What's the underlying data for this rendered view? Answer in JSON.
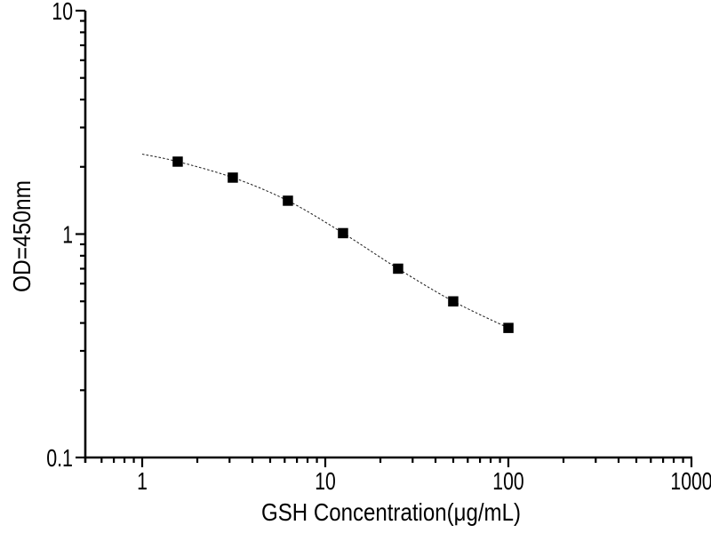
{
  "page": {
    "background": "#ffffff"
  },
  "chart_data": {
    "type": "scatter",
    "title": "",
    "xlabel": "GSH Concentration(μg/mL)",
    "ylabel": "OD=450nm",
    "x_scale": "log",
    "y_scale": "log",
    "xlim": [
      0.5,
      1000
    ],
    "ylim": [
      0.1,
      10
    ],
    "x_major_ticks": [
      1,
      10,
      100,
      1000
    ],
    "x_major_tick_labels": [
      "1",
      "10",
      "100",
      "1000"
    ],
    "y_major_ticks": [
      10,
      1,
      0.1
    ],
    "y_major_tick_labels": [
      "10",
      "1",
      "0.1"
    ],
    "grid": false,
    "legend": false,
    "marker": "filled-square",
    "marker_color": "#000000",
    "line_color": "#222222",
    "line_style": "dotted",
    "axis_color": "#000000",
    "points": {
      "x": [
        1.5625,
        3.125,
        6.25,
        12.5,
        25,
        50,
        100
      ],
      "y": [
        2.11,
        1.79,
        1.41,
        1.01,
        0.7,
        0.5,
        0.38
      ]
    },
    "fit_curve_points": {
      "x": [
        1.0,
        1.5625,
        3.125,
        6.25,
        12.5,
        25,
        50,
        100
      ],
      "y": [
        2.28,
        2.11,
        1.79,
        1.41,
        1.01,
        0.7,
        0.5,
        0.38
      ]
    }
  }
}
